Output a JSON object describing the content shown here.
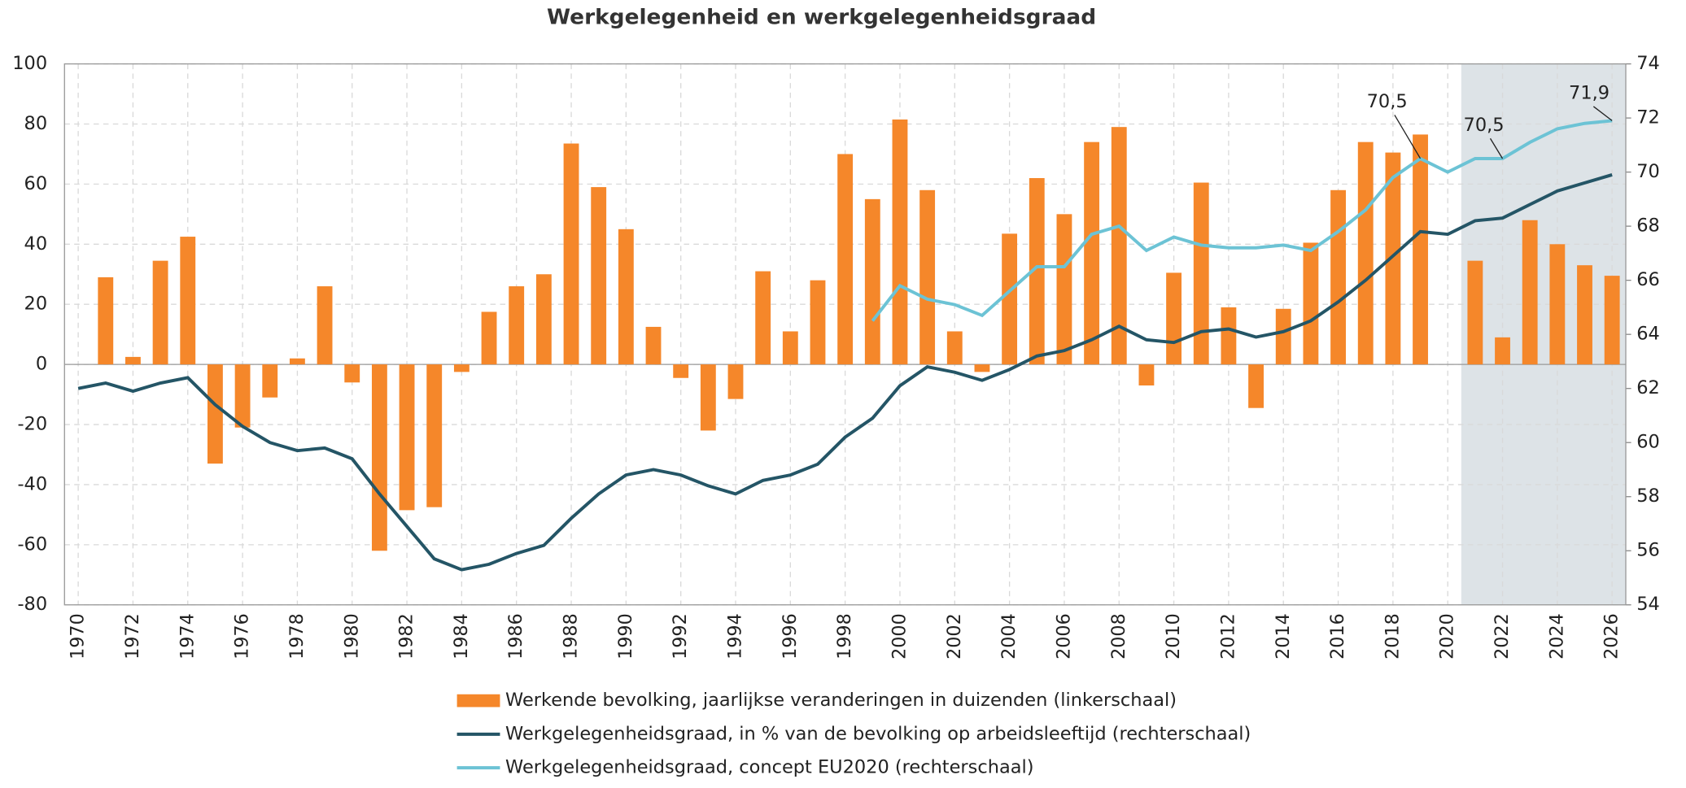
{
  "chart_data": {
    "type": "bar",
    "title": "Werkgelegenheid en werkgelegenheidsgraad",
    "categories": [
      "1970",
      null,
      "1972",
      null,
      "1974",
      null,
      "1976",
      null,
      "1978",
      null,
      "1980",
      null,
      "1982",
      null,
      "1984",
      null,
      "1986",
      null,
      "1988",
      null,
      "1990",
      null,
      "1992",
      null,
      "1994",
      null,
      "1996",
      null,
      "1998",
      null,
      "2000",
      null,
      "2002",
      null,
      "2004",
      null,
      "2006",
      null,
      "2008",
      null,
      "2010",
      null,
      "2012",
      null,
      "2014",
      null,
      "2016",
      null,
      "2018",
      null,
      "2020",
      null,
      "2022",
      null,
      "2024",
      null,
      "2026"
    ],
    "ylim": [
      -80,
      100
    ],
    "yticks": [
      -80,
      -60,
      -40,
      -20,
      0,
      20,
      40,
      60,
      80,
      100
    ],
    "y2lim": [
      54,
      74
    ],
    "y2ticks": [
      54,
      56,
      58,
      60,
      62,
      64,
      66,
      68,
      70,
      72,
      74
    ],
    "grid": true,
    "series": [
      {
        "name": "Werkende bevolking, jaarlijkse veranderingen in duizenden (linkerschaal)",
        "type": "bar",
        "axis": "y",
        "color": "#f5872a",
        "values": [
          null,
          29,
          2.5,
          34.5,
          42.5,
          -33,
          -21,
          -11,
          2,
          26,
          -6,
          -62,
          -48.5,
          -47.5,
          -2.5,
          17.5,
          26,
          30,
          73.5,
          59,
          45,
          12.5,
          -4.5,
          -22,
          -11.5,
          31,
          11,
          28,
          70,
          55,
          81.5,
          58,
          11,
          -2.5,
          43.5,
          62,
          50,
          74,
          79,
          -7,
          30.5,
          60.5,
          19,
          -14.5,
          18.5,
          40.5,
          58,
          74,
          70.5,
          76.5,
          null,
          34.5,
          9,
          48,
          40,
          33,
          29.5
        ]
      },
      {
        "name": "Werkgelegenheidsgraad, in % van de bevolking op arbeidsleeftijd (rechterschaal)",
        "type": "line",
        "axis": "y2",
        "color": "#245566",
        "values": [
          62.0,
          62.2,
          61.9,
          62.2,
          62.4,
          61.4,
          60.6,
          60.0,
          59.7,
          59.8,
          59.4,
          58.1,
          56.9,
          55.7,
          55.3,
          55.5,
          55.9,
          56.2,
          57.2,
          58.1,
          58.8,
          59.0,
          58.8,
          58.4,
          58.1,
          58.6,
          58.8,
          59.2,
          60.2,
          60.9,
          62.1,
          62.8,
          62.6,
          62.3,
          62.7,
          63.2,
          63.4,
          63.8,
          64.3,
          63.8,
          63.7,
          64.1,
          64.2,
          63.9,
          64.1,
          64.5,
          65.2,
          66.0,
          66.9,
          67.8,
          67.7,
          68.2,
          68.3,
          68.8,
          69.3,
          69.6,
          69.9
        ]
      },
      {
        "name": "Werkgelegenheidsgraad, concept EU2020 (rechterschaal)",
        "type": "line",
        "axis": "y2",
        "color": "#6cc3d5",
        "values": [
          null,
          null,
          null,
          null,
          null,
          null,
          null,
          null,
          null,
          null,
          null,
          null,
          null,
          null,
          null,
          null,
          null,
          null,
          null,
          null,
          null,
          null,
          null,
          null,
          null,
          null,
          null,
          null,
          null,
          64.5,
          65.8,
          65.3,
          65.1,
          64.7,
          65.6,
          66.5,
          66.5,
          67.7,
          68.0,
          67.1,
          67.6,
          67.3,
          67.2,
          67.2,
          67.3,
          67.1,
          67.8,
          68.6,
          69.8,
          70.5,
          70.0,
          70.5,
          70.5,
          71.1,
          71.6,
          71.8,
          71.9
        ],
        "value_labels": [
          null,
          null,
          null,
          null,
          null,
          null,
          null,
          null,
          null,
          null,
          null,
          null,
          null,
          null,
          null,
          null,
          null,
          null,
          null,
          null,
          null,
          null,
          null,
          null,
          null,
          null,
          null,
          null,
          null,
          null,
          null,
          null,
          null,
          null,
          null,
          null,
          null,
          null,
          null,
          null,
          null,
          null,
          null,
          null,
          null,
          null,
          null,
          null,
          null,
          "70,5",
          null,
          null,
          "70,5",
          null,
          null,
          null,
          "71,9"
        ]
      }
    ]
  }
}
